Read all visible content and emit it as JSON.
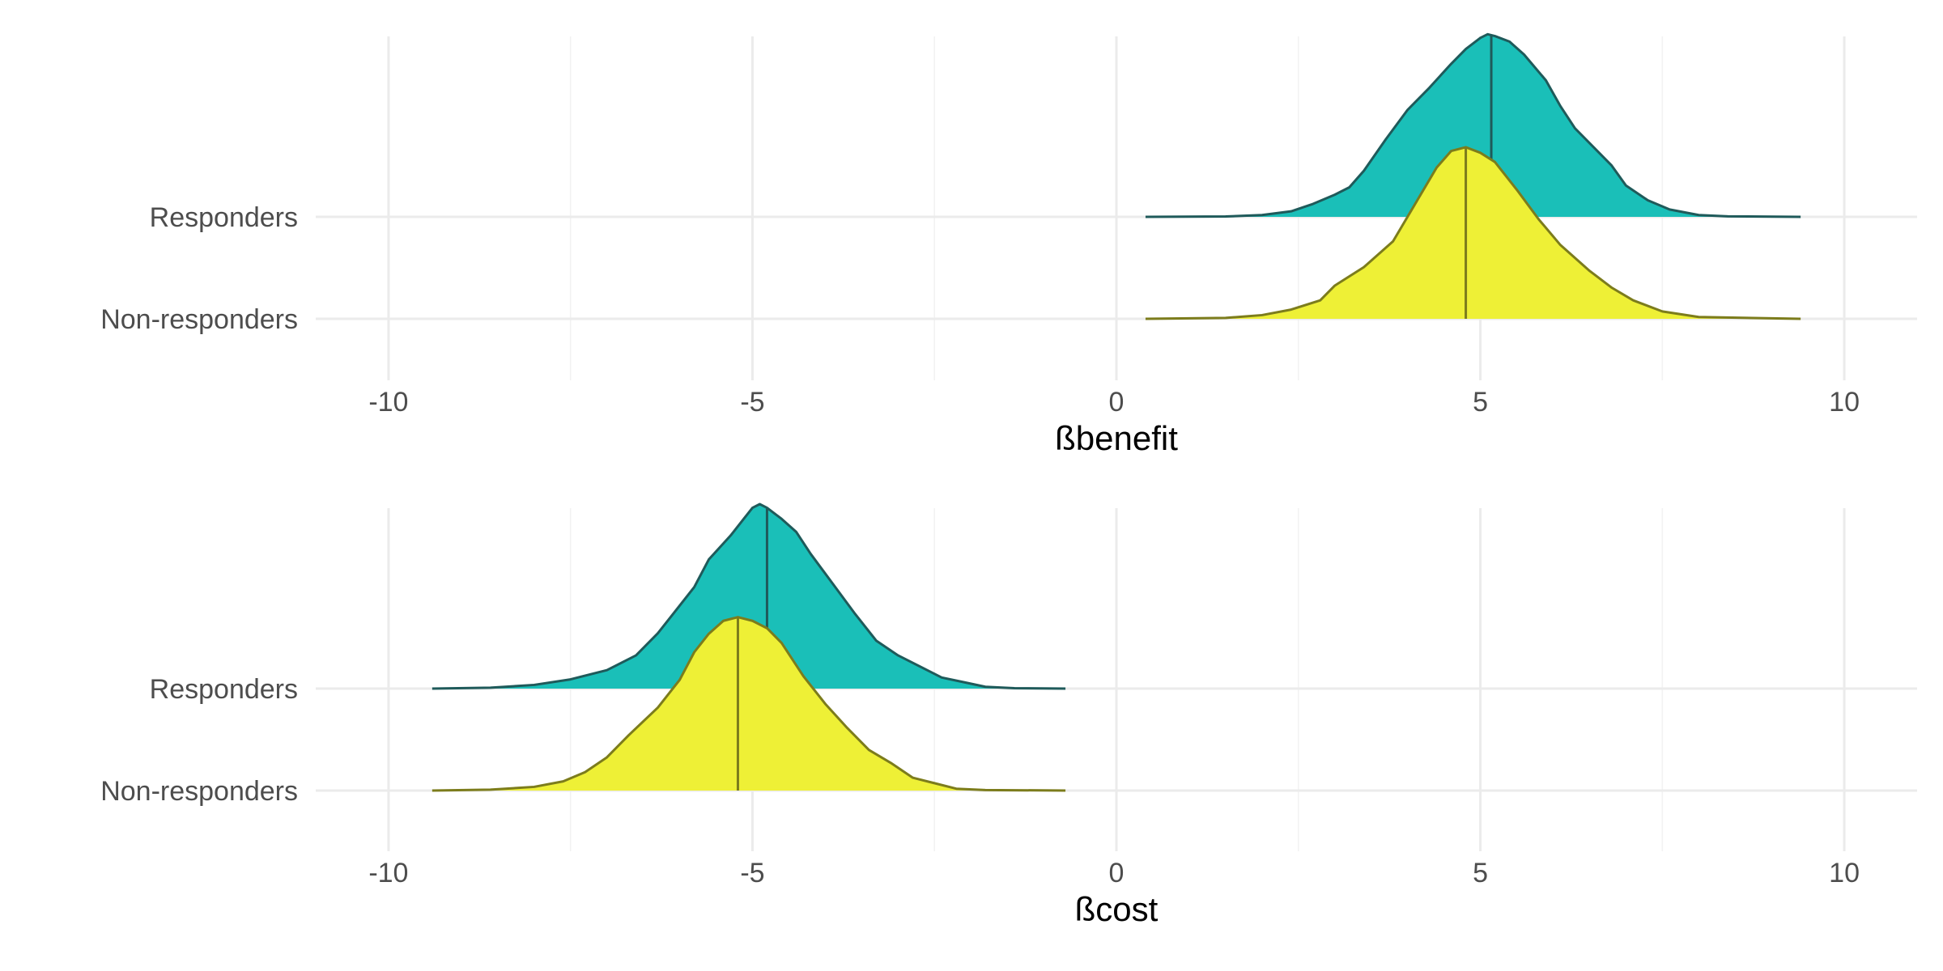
{
  "chart_data": [
    {
      "type": "ridgeline-density",
      "xlabel": "ßbenefit",
      "ylabel": "",
      "xlim": [
        -11,
        11
      ],
      "x_ticks": [
        "-10",
        "-5",
        "0",
        "5",
        "10"
      ],
      "categories": [
        "Responders",
        "Non-responders"
      ],
      "grid": true,
      "series": [
        {
          "name": "Responders",
          "color": "#1abfb8",
          "outline": "#1f5a5a",
          "median": 5.15,
          "x": [
            0.4,
            1.5,
            2.0,
            2.4,
            2.7,
            3.0,
            3.2,
            3.4,
            3.7,
            4.0,
            4.3,
            4.6,
            4.8,
            5.0,
            5.1,
            5.2,
            5.4,
            5.6,
            5.9,
            6.1,
            6.3,
            6.5,
            6.8,
            7.0,
            7.3,
            7.6,
            8.0,
            8.4,
            9.4
          ],
          "y": [
            0.0,
            0.002,
            0.01,
            0.03,
            0.07,
            0.12,
            0.16,
            0.25,
            0.42,
            0.58,
            0.7,
            0.83,
            0.91,
            0.97,
            0.99,
            0.98,
            0.95,
            0.88,
            0.74,
            0.6,
            0.48,
            0.4,
            0.28,
            0.17,
            0.09,
            0.04,
            0.01,
            0.003,
            0.0
          ]
        },
        {
          "name": "Non-responders",
          "color": "#eef036",
          "outline": "#7c7c1c",
          "median": 4.8,
          "x": [
            0.4,
            1.5,
            2.0,
            2.4,
            2.8,
            3.0,
            3.4,
            3.8,
            4.1,
            4.4,
            4.6,
            4.8,
            5.0,
            5.2,
            5.5,
            5.8,
            6.1,
            6.5,
            6.8,
            7.1,
            7.5,
            8.0,
            9.4
          ],
          "y": [
            0.0,
            0.005,
            0.02,
            0.05,
            0.1,
            0.18,
            0.28,
            0.42,
            0.62,
            0.82,
            0.91,
            0.93,
            0.9,
            0.85,
            0.7,
            0.54,
            0.4,
            0.26,
            0.17,
            0.1,
            0.04,
            0.01,
            0.0
          ]
        }
      ]
    },
    {
      "type": "ridgeline-density",
      "xlabel": "ßcost",
      "ylabel": "",
      "xlim": [
        -11,
        11
      ],
      "x_ticks": [
        "-10",
        "-5",
        "0",
        "5",
        "10"
      ],
      "categories": [
        "Responders",
        "Non-responders"
      ],
      "grid": true,
      "series": [
        {
          "name": "Responders",
          "color": "#1abfb8",
          "outline": "#1f5a5a",
          "median": -4.8,
          "x": [
            -9.4,
            -8.6,
            -8.0,
            -7.5,
            -7.0,
            -6.6,
            -6.3,
            -6.1,
            -5.8,
            -5.6,
            -5.3,
            -5.1,
            -5.0,
            -4.9,
            -4.8,
            -4.6,
            -4.4,
            -4.2,
            -3.9,
            -3.6,
            -3.3,
            -3.0,
            -2.6,
            -2.4,
            -2.1,
            -1.8,
            -1.4,
            -0.7
          ],
          "y": [
            0.0,
            0.005,
            0.02,
            0.05,
            0.1,
            0.18,
            0.3,
            0.4,
            0.55,
            0.7,
            0.83,
            0.93,
            0.98,
            1.0,
            0.98,
            0.92,
            0.85,
            0.73,
            0.57,
            0.41,
            0.26,
            0.18,
            0.1,
            0.06,
            0.035,
            0.01,
            0.002,
            0.0
          ]
        },
        {
          "name": "Non-responders",
          "color": "#eef036",
          "outline": "#7c7c1c",
          "median": -5.2,
          "x": [
            -9.4,
            -8.6,
            -8.0,
            -7.6,
            -7.3,
            -7.0,
            -6.7,
            -6.3,
            -6.0,
            -5.8,
            -5.6,
            -5.4,
            -5.2,
            -5.0,
            -4.8,
            -4.6,
            -4.3,
            -4.0,
            -3.7,
            -3.4,
            -3.1,
            -2.8,
            -2.5,
            -2.2,
            -1.8,
            -0.7
          ],
          "y": [
            0.0,
            0.005,
            0.02,
            0.05,
            0.1,
            0.18,
            0.3,
            0.45,
            0.6,
            0.75,
            0.85,
            0.92,
            0.94,
            0.92,
            0.88,
            0.8,
            0.62,
            0.47,
            0.34,
            0.22,
            0.15,
            0.07,
            0.04,
            0.01,
            0.003,
            0.0
          ]
        }
      ]
    }
  ]
}
